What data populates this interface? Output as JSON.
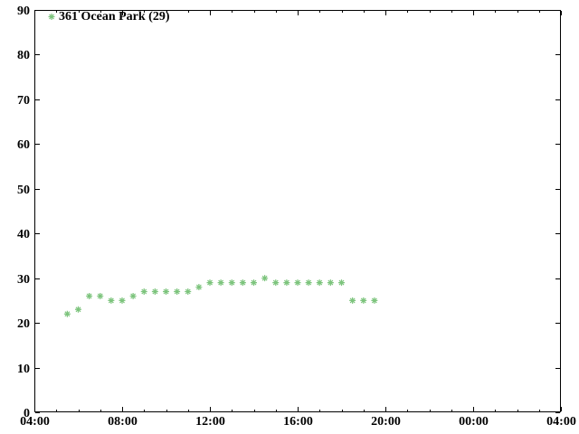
{
  "chart_data": {
    "type": "scatter",
    "title": "",
    "xlabel": "",
    "ylabel": "",
    "grid": false,
    "background": "#ffffff",
    "axis_color": "#000000",
    "text_color": "#000000",
    "legend": {
      "label": "361 Ocean Park (29)",
      "position": "top-left",
      "frame": false
    },
    "x_axis": {
      "start_hour": 4,
      "end_hour": 28,
      "major_step_hours": 4,
      "minor_step_hours": 1,
      "tick_labels": [
        "04:00",
        "08:00",
        "12:00",
        "16:00",
        "20:00",
        "00:00",
        "04:00"
      ]
    },
    "y_axis": {
      "min": 0,
      "max": 90,
      "step": 10,
      "tick_labels": [
        "0",
        "10",
        "20",
        "30",
        "40",
        "50",
        "60",
        "70",
        "80",
        "90"
      ]
    },
    "series": [
      {
        "name": "361 Ocean Park (29)",
        "marker": "asterisk",
        "color": "#7dc47d",
        "points": [
          [
            "05:30",
            22
          ],
          [
            "06:00",
            23
          ],
          [
            "06:30",
            26
          ],
          [
            "07:00",
            26
          ],
          [
            "07:30",
            25
          ],
          [
            "08:00",
            25
          ],
          [
            "08:30",
            26
          ],
          [
            "09:00",
            27
          ],
          [
            "09:30",
            27
          ],
          [
            "10:00",
            27
          ],
          [
            "10:30",
            27
          ],
          [
            "11:00",
            27
          ],
          [
            "11:30",
            28
          ],
          [
            "12:00",
            29
          ],
          [
            "12:30",
            29
          ],
          [
            "13:00",
            29
          ],
          [
            "13:30",
            29
          ],
          [
            "14:00",
            29
          ],
          [
            "14:30",
            30
          ],
          [
            "15:00",
            29
          ],
          [
            "15:30",
            29
          ],
          [
            "16:00",
            29
          ],
          [
            "16:30",
            29
          ],
          [
            "17:00",
            29
          ],
          [
            "17:30",
            29
          ],
          [
            "18:00",
            29
          ],
          [
            "18:30",
            25
          ],
          [
            "19:00",
            25
          ],
          [
            "19:30",
            25
          ]
        ]
      }
    ]
  }
}
